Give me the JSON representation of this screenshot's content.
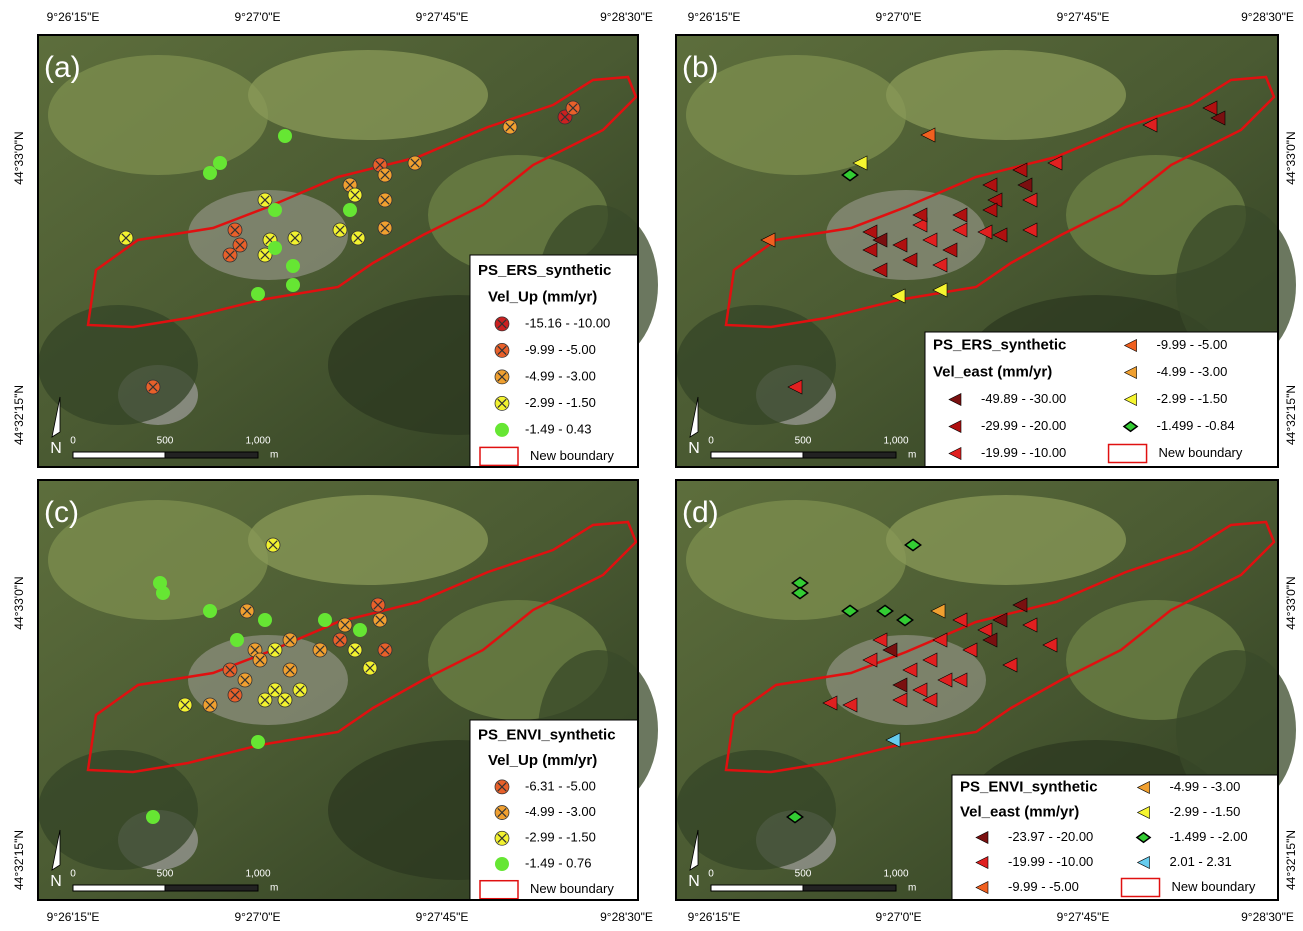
{
  "coords": {
    "lon": [
      "9°26'15\"E",
      "9°27'0\"E",
      "9°27'45\"E",
      "9°28'30\"E"
    ],
    "lat": [
      "44°33'0\"N",
      "44°32'15\"N"
    ]
  },
  "scale": [
    "0",
    "500",
    "1,000",
    "m"
  ],
  "north": "N",
  "boundary_label": "New boundary",
  "boundary_color": "#e01010",
  "panels": [
    {
      "label": "(a)",
      "legend_title": "PS_ERS_synthetic",
      "legend_subtitle": "Vel_Up (mm/yr)",
      "classes": [
        {
          "label": "-15.16 - -10.00",
          "color": "#cc2020",
          "shape": "circle-x"
        },
        {
          "label": "-9.99 - -5.00",
          "color": "#e8602a",
          "shape": "circle-x"
        },
        {
          "label": "-4.99 - -3.00",
          "color": "#f0a030",
          "shape": "circle-x"
        },
        {
          "label": "-2.99 - -1.50",
          "color": "#f2f230",
          "shape": "circle-x"
        },
        {
          "label": "-1.49 - 0.43",
          "color": "#66e633",
          "shape": "circle"
        }
      ]
    },
    {
      "label": "(b)",
      "legend_title": "PS_ERS_synthetic",
      "legend_subtitle": "Vel_east (mm/yr)",
      "classes": [
        {
          "label": "-49.89 - -30.00",
          "color": "#7a1010",
          "shape": "triangle"
        },
        {
          "label": "-29.99 - -20.00",
          "color": "#b01010",
          "shape": "triangle"
        },
        {
          "label": "-19.99 - -10.00",
          "color": "#e02020",
          "shape": "triangle"
        },
        {
          "label": "-9.99 - -5.00",
          "color": "#f06020",
          "shape": "triangle"
        },
        {
          "label": "-4.99 - -3.00",
          "color": "#f0a030",
          "shape": "triangle"
        },
        {
          "label": "-2.99 - -1.50",
          "color": "#f5f530",
          "shape": "triangle"
        },
        {
          "label": "-1.499 - -0.84",
          "color": "#33cc33",
          "shape": "diamond"
        }
      ]
    },
    {
      "label": "(c)",
      "legend_title": "PS_ENVI_synthetic",
      "legend_subtitle": "Vel_Up (mm/yr)",
      "classes": [
        {
          "label": "-6.31 - -5.00",
          "color": "#e8602a",
          "shape": "circle-x"
        },
        {
          "label": "-4.99 - -3.00",
          "color": "#f0a030",
          "shape": "circle-x"
        },
        {
          "label": "-2.99 - -1.50",
          "color": "#f2f230",
          "shape": "circle-x"
        },
        {
          "label": "-1.49 - 0.76",
          "color": "#66e633",
          "shape": "circle"
        }
      ]
    },
    {
      "label": "(d)",
      "legend_title": "PS_ENVI_synthetic",
      "legend_subtitle": "Vel_east (mm/yr)",
      "classes": [
        {
          "label": "-23.97 - -20.00",
          "color": "#7a1010",
          "shape": "triangle"
        },
        {
          "label": "-19.99 - -10.00",
          "color": "#e02020",
          "shape": "triangle"
        },
        {
          "label": "-9.99 - -5.00",
          "color": "#f06020",
          "shape": "triangle"
        },
        {
          "label": "-4.99 - -3.00",
          "color": "#f0a030",
          "shape": "triangle"
        },
        {
          "label": "-2.99 - -1.50",
          "color": "#f5f530",
          "shape": "triangle"
        },
        {
          "label": "-1.499 - -2.00",
          "color": "#33cc33",
          "shape": "diamond"
        },
        {
          "label": "2.01 - 2.31",
          "color": "#66ccee",
          "shape": "triangle"
        }
      ]
    }
  ]
}
